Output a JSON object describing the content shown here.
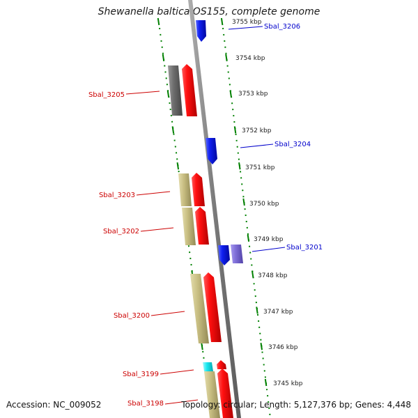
{
  "title": "Shewanella baltica OS155, complete genome",
  "footer": {
    "accession": "Accession: NC_009052",
    "summary": "Topology: circular; Length: 5,127,376 bp; Genes: 4,448"
  },
  "colors": {
    "forward": "#e8000b",
    "reverse": "#0018e6",
    "backbone": "#808080",
    "tick": "#008000",
    "forward_label": "#cc0000",
    "reverse_label": "#0000cc",
    "khaki": "#c8be82",
    "gray_block": "#6f6f6f",
    "lavender": "#7f6fd8",
    "cyan": "#18e8f0"
  },
  "scale_labels": [
    "3755 kbp",
    "3754 kbp",
    "3753 kbp",
    "3752 kbp",
    "3751 kbp",
    "3750 kbp",
    "3749 kbp",
    "3748 kbp",
    "3747 kbp",
    "3746 kbp",
    "3745 kbp"
  ],
  "genes": [
    {
      "name": "Sbal_3206",
      "strand": "reverse"
    },
    {
      "name": "Sbal_3205",
      "strand": "forward"
    },
    {
      "name": "Sbal_3204",
      "strand": "reverse"
    },
    {
      "name": "Sbal_3203",
      "strand": "forward"
    },
    {
      "name": "Sbal_3202",
      "strand": "forward"
    },
    {
      "name": "Sbal_3201",
      "strand": "reverse"
    },
    {
      "name": "Sbal_3200",
      "strand": "forward"
    },
    {
      "name": "Sbal_3199",
      "strand": "forward"
    },
    {
      "name": "Sbal_3198",
      "strand": "forward"
    }
  ]
}
